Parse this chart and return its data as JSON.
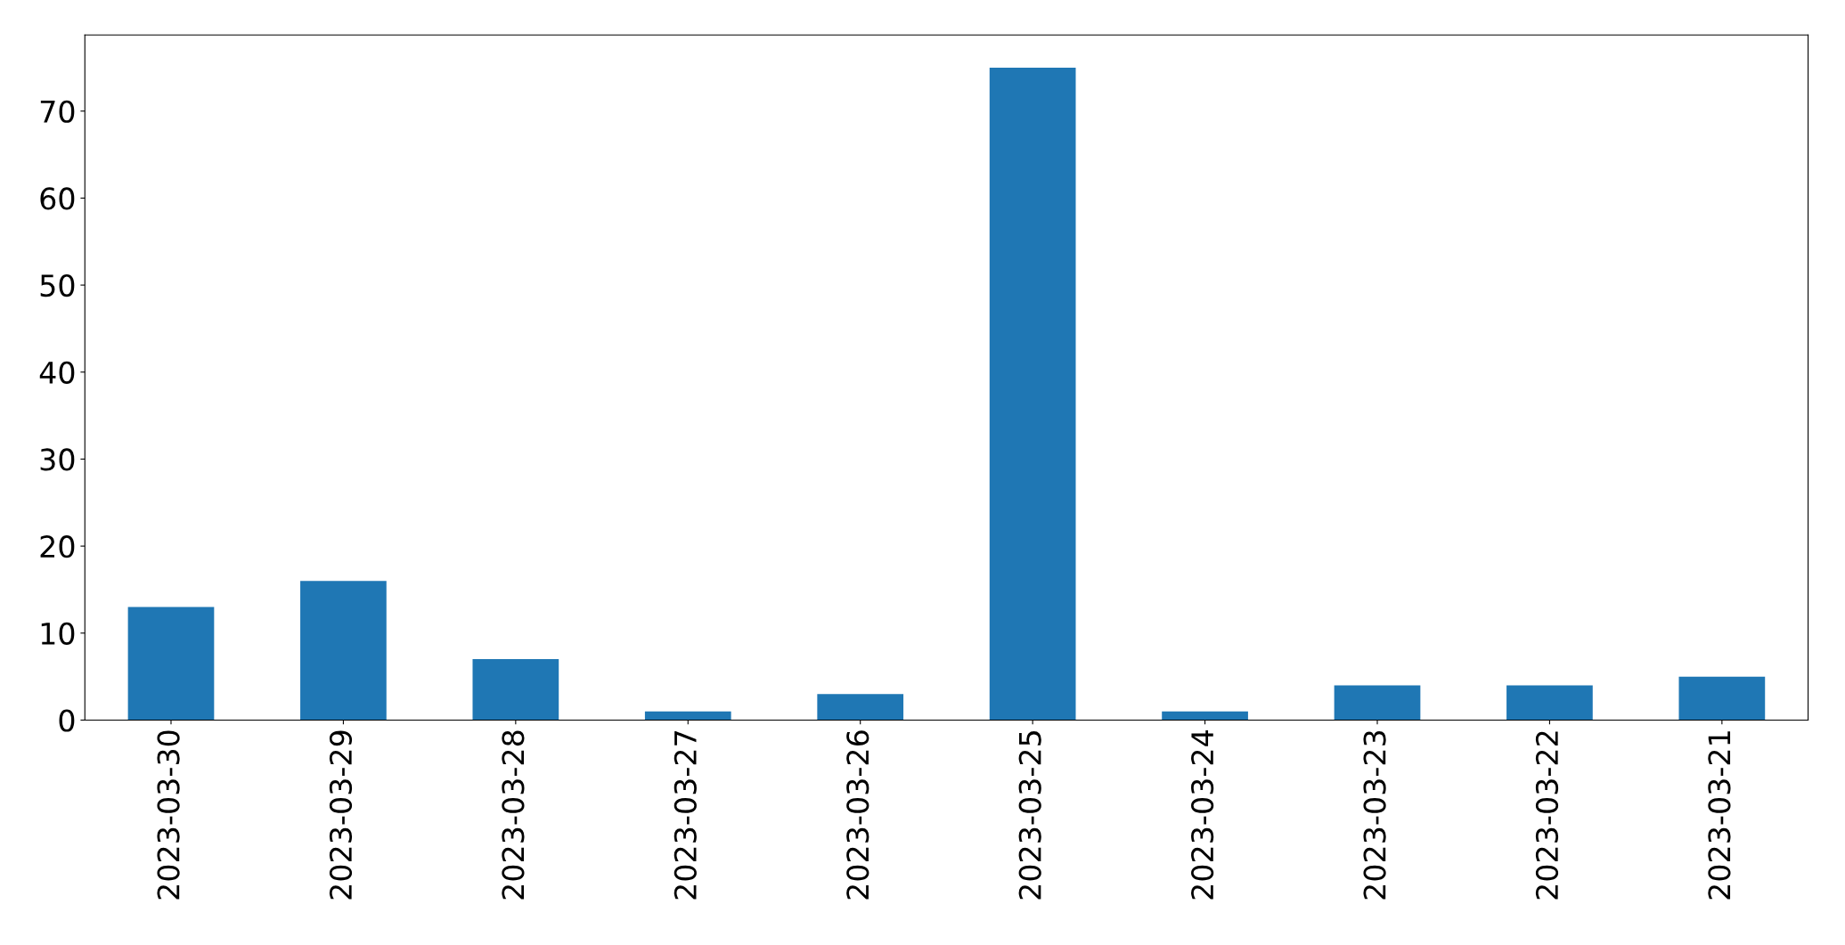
{
  "chart_data": {
    "type": "bar",
    "categories": [
      "2023-03-30",
      "2023-03-29",
      "2023-03-28",
      "2023-03-27",
      "2023-03-26",
      "2023-03-25",
      "2023-03-24",
      "2023-03-23",
      "2023-03-22",
      "2023-03-21"
    ],
    "values": [
      13,
      16,
      7,
      1,
      3,
      75,
      1,
      4,
      4,
      5
    ],
    "color": "#1f77b4",
    "ylim": [
      0,
      78.75
    ],
    "yticks": [
      0,
      10,
      20,
      30,
      40,
      50,
      60,
      70
    ],
    "grid": false,
    "legend": false
  }
}
